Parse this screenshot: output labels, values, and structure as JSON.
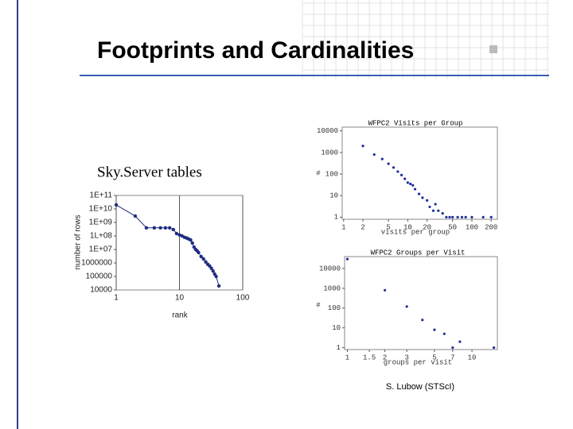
{
  "title": "Footprints and Cardinalities",
  "credit": "S. Lubow (STScI)",
  "chart_data": [
    {
      "type": "line",
      "title": "Sky.Server tables",
      "x_label": "rank",
      "y_label": "number of rows",
      "color": "#1f2d80",
      "log_x": true,
      "log_y": true,
      "grid": true,
      "x": [
        1,
        2,
        3,
        4,
        5,
        6,
        7,
        8,
        9,
        10,
        11,
        12,
        13,
        14,
        15,
        16,
        17,
        18,
        19,
        20,
        22,
        24,
        26,
        28,
        30,
        32,
        34,
        36,
        38,
        42
      ],
      "values": [
        20000000000,
        3000000000,
        400000000,
        400000000,
        400000000,
        400000000,
        400000000,
        300000000,
        150000000,
        120000000,
        100000000,
        80000000,
        70000000,
        60000000,
        50000000,
        30000000,
        15000000,
        10000000,
        8000000,
        6000000,
        3000000,
        2000000,
        1200000,
        800000,
        600000,
        400000,
        250000,
        150000,
        100000,
        20000
      ],
      "xlim": [
        1,
        100
      ],
      "xticks": [
        1,
        10,
        100
      ],
      "ylim": [
        10000,
        100000000000
      ],
      "yticks": [
        {
          "value": 100000000000,
          "label": "1E+11"
        },
        {
          "value": 10000000000,
          "label": "1E+10"
        },
        {
          "value": 1000000000,
          "label": "1E+09"
        },
        {
          "value": 100000000,
          "label": "1L+08"
        },
        {
          "value": 10000000,
          "label": "1E+07"
        },
        1000000,
        100000,
        10000
      ]
    },
    {
      "type": "scatter",
      "title": "WFPC2 Visits per Group",
      "x_label": "visits per group",
      "y_label": "#",
      "color": "#1f2d9a",
      "log_x": true,
      "log_y": true,
      "grid": false,
      "x": [
        2,
        3,
        4,
        5,
        6,
        7,
        8,
        9,
        10,
        11,
        12,
        13,
        15,
        17,
        20,
        22,
        25,
        27,
        30,
        35,
        40,
        45,
        50,
        60,
        70,
        80,
        100,
        150,
        200
      ],
      "values": [
        2000,
        800,
        500,
        300,
        200,
        130,
        90,
        60,
        40,
        35,
        30,
        20,
        12,
        8,
        6,
        3,
        2,
        4,
        2,
        1.5,
        1,
        1,
        1,
        1,
        1,
        1,
        1,
        1,
        1
      ],
      "xlim": [
        0.95,
        250
      ],
      "xticks": [
        1,
        2,
        5,
        10,
        20,
        50,
        100,
        200
      ],
      "ylim": [
        0.8,
        15000
      ],
      "yticks": [
        10000,
        1000,
        100,
        10,
        1
      ]
    },
    {
      "type": "scatter",
      "title": "WFPC2 Groups per Visit",
      "x_label": "groups per visit",
      "y_label": "#",
      "color": "#1f2d9a",
      "log_x": true,
      "log_y": true,
      "grid": false,
      "x": [
        1,
        2,
        3,
        4,
        5,
        6,
        7,
        8,
        15
      ],
      "values": [
        30000,
        800,
        120,
        25,
        8,
        5,
        1,
        2,
        1
      ],
      "xlim": [
        0.95,
        16
      ],
      "xticks": [
        1,
        1.5,
        2,
        3,
        5,
        7,
        10
      ],
      "ylim": [
        0.8,
        40000
      ],
      "yticks": [
        10000,
        1000,
        100,
        10,
        1
      ]
    }
  ]
}
